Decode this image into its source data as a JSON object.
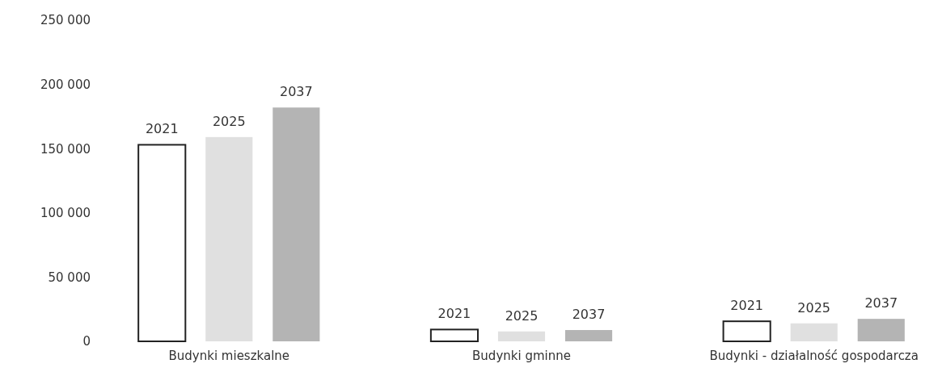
{
  "chart_data": {
    "type": "bar",
    "categories": [
      "Budynki mieszkalne",
      "Budynki gminne",
      "Budynki - działalność gospodarcza"
    ],
    "series": [
      {
        "name": "2021",
        "color": "#ffffff",
        "values": [
          153000,
          9200,
          15600
        ]
      },
      {
        "name": "2025",
        "color": "#e0e0e0",
        "values": [
          159000,
          7700,
          14000
        ]
      },
      {
        "name": "2037",
        "color": "#b4b4b4",
        "values": [
          182000,
          8800,
          17500
        ]
      }
    ],
    "ylim": [
      0,
      250000
    ],
    "yticks": [
      {
        "value": 0,
        "label": "0"
      },
      {
        "value": 50000,
        "label": "50 000"
      },
      {
        "value": 100000,
        "label": "100 000"
      },
      {
        "value": 150000,
        "label": "150 000"
      },
      {
        "value": 200000,
        "label": "200 000"
      },
      {
        "value": 250000,
        "label": "250 000"
      }
    ],
    "grid": false,
    "legend": false
  }
}
